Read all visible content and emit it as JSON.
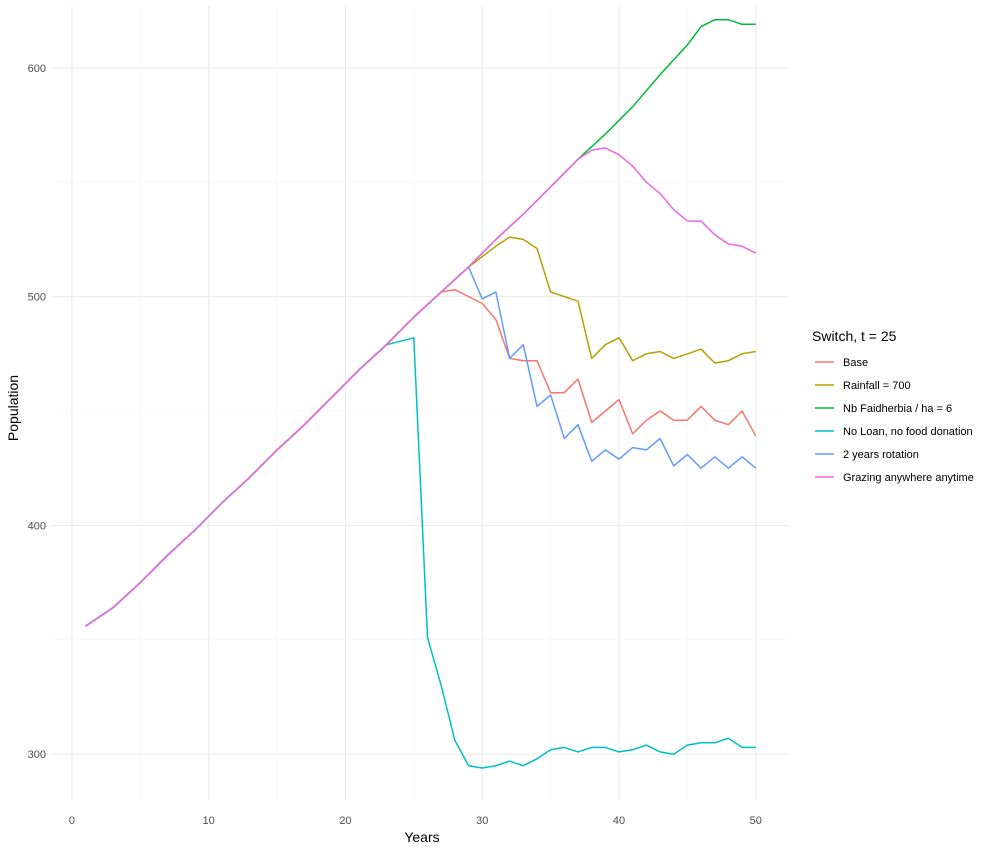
{
  "chart_data": {
    "type": "line",
    "xlabel": "Years",
    "ylabel": "Population",
    "xlim": [
      -1.6,
      52.5
    ],
    "ylim": [
      280,
      627
    ],
    "x_ticks": [
      0,
      10,
      20,
      30,
      40,
      50
    ],
    "y_ticks": [
      300,
      400,
      500,
      600
    ],
    "grid": true,
    "legend": {
      "title": "Switch, t = 25",
      "position": "right"
    },
    "series": [
      {
        "name": "Base",
        "color": "#F8766D",
        "points": [
          [
            1,
            356
          ],
          [
            3,
            364
          ],
          [
            5,
            375
          ],
          [
            7,
            387
          ],
          [
            9,
            398
          ],
          [
            11,
            410
          ],
          [
            13,
            421
          ],
          [
            15,
            433
          ],
          [
            17,
            444
          ],
          [
            19,
            456
          ],
          [
            21,
            468
          ],
          [
            23,
            479
          ],
          [
            25,
            491
          ],
          [
            27,
            502
          ],
          [
            28,
            503
          ],
          [
            30,
            497
          ],
          [
            31,
            490
          ],
          [
            32,
            473
          ],
          [
            33,
            472
          ],
          [
            34,
            472
          ],
          [
            35,
            458
          ],
          [
            36,
            458
          ],
          [
            37,
            464
          ],
          [
            38,
            445
          ],
          [
            39,
            450
          ],
          [
            40,
            455
          ],
          [
            41,
            440
          ],
          [
            42,
            446
          ],
          [
            43,
            450
          ],
          [
            44,
            446
          ],
          [
            45,
            446
          ],
          [
            46,
            452
          ],
          [
            47,
            446
          ],
          [
            48,
            444
          ],
          [
            49,
            450
          ],
          [
            50,
            439
          ]
        ]
      },
      {
        "name": "Rainfall = 700",
        "color": "#B79F00",
        "points": [
          [
            1,
            356
          ],
          [
            3,
            364
          ],
          [
            5,
            375
          ],
          [
            7,
            387
          ],
          [
            9,
            398
          ],
          [
            11,
            410
          ],
          [
            13,
            421
          ],
          [
            15,
            433
          ],
          [
            17,
            444
          ],
          [
            19,
            456
          ],
          [
            21,
            468
          ],
          [
            23,
            479
          ],
          [
            25,
            491
          ],
          [
            27,
            502
          ],
          [
            29,
            513
          ],
          [
            31,
            522
          ],
          [
            32,
            526
          ],
          [
            33,
            525
          ],
          [
            34,
            521
          ],
          [
            35,
            502
          ],
          [
            36,
            500
          ],
          [
            37,
            498
          ],
          [
            38,
            473
          ],
          [
            39,
            479
          ],
          [
            40,
            482
          ],
          [
            41,
            472
          ],
          [
            42,
            475
          ],
          [
            43,
            476
          ],
          [
            44,
            473
          ],
          [
            45,
            475
          ],
          [
            46,
            477
          ],
          [
            47,
            471
          ],
          [
            48,
            472
          ],
          [
            49,
            475
          ],
          [
            50,
            476
          ]
        ]
      },
      {
        "name": "Nb Faidherbia / ha = 6",
        "color": "#00BA38",
        "points": [
          [
            1,
            356
          ],
          [
            3,
            364
          ],
          [
            5,
            375
          ],
          [
            7,
            387
          ],
          [
            9,
            398
          ],
          [
            11,
            410
          ],
          [
            13,
            421
          ],
          [
            15,
            433
          ],
          [
            17,
            444
          ],
          [
            19,
            456
          ],
          [
            21,
            468
          ],
          [
            23,
            479
          ],
          [
            25,
            491
          ],
          [
            27,
            502
          ],
          [
            29,
            513
          ],
          [
            31,
            525
          ],
          [
            33,
            536
          ],
          [
            35,
            548
          ],
          [
            37,
            560
          ],
          [
            39,
            571
          ],
          [
            41,
            583
          ],
          [
            43,
            597
          ],
          [
            45,
            610
          ],
          [
            46,
            618
          ],
          [
            47,
            621
          ],
          [
            48,
            621
          ],
          [
            49,
            619
          ],
          [
            50,
            619
          ]
        ]
      },
      {
        "name": "No Loan, no food donation",
        "color": "#00BFC4",
        "points": [
          [
            1,
            356
          ],
          [
            3,
            364
          ],
          [
            5,
            375
          ],
          [
            7,
            387
          ],
          [
            9,
            398
          ],
          [
            11,
            410
          ],
          [
            13,
            421
          ],
          [
            15,
            433
          ],
          [
            17,
            444
          ],
          [
            19,
            456
          ],
          [
            21,
            468
          ],
          [
            23,
            479
          ],
          [
            25,
            482
          ],
          [
            26,
            351
          ],
          [
            27,
            330
          ],
          [
            28,
            306
          ],
          [
            29,
            295
          ],
          [
            30,
            294
          ],
          [
            31,
            295
          ],
          [
            32,
            297
          ],
          [
            33,
            295
          ],
          [
            34,
            298
          ],
          [
            35,
            302
          ],
          [
            36,
            303
          ],
          [
            37,
            301
          ],
          [
            38,
            303
          ],
          [
            39,
            303
          ],
          [
            40,
            301
          ],
          [
            41,
            302
          ],
          [
            42,
            304
          ],
          [
            43,
            301
          ],
          [
            44,
            300
          ],
          [
            45,
            304
          ],
          [
            46,
            305
          ],
          [
            47,
            305
          ],
          [
            48,
            307
          ],
          [
            49,
            303
          ],
          [
            50,
            303
          ]
        ]
      },
      {
        "name": "2 years rotation",
        "color": "#619CFF",
        "points": [
          [
            1,
            356
          ],
          [
            3,
            364
          ],
          [
            5,
            375
          ],
          [
            7,
            387
          ],
          [
            9,
            398
          ],
          [
            11,
            410
          ],
          [
            13,
            421
          ],
          [
            15,
            433
          ],
          [
            17,
            444
          ],
          [
            19,
            456
          ],
          [
            21,
            468
          ],
          [
            23,
            479
          ],
          [
            25,
            491
          ],
          [
            27,
            502
          ],
          [
            29,
            513
          ],
          [
            30,
            499
          ],
          [
            31,
            502
          ],
          [
            32,
            473
          ],
          [
            33,
            479
          ],
          [
            34,
            452
          ],
          [
            35,
            457
          ],
          [
            36,
            438
          ],
          [
            37,
            444
          ],
          [
            38,
            428
          ],
          [
            39,
            433
          ],
          [
            40,
            429
          ],
          [
            41,
            434
          ],
          [
            42,
            433
          ],
          [
            43,
            438
          ],
          [
            44,
            426
          ],
          [
            45,
            431
          ],
          [
            46,
            425
          ],
          [
            47,
            430
          ],
          [
            48,
            425
          ],
          [
            49,
            430
          ],
          [
            50,
            425
          ]
        ]
      },
      {
        "name": "Grazing anywhere anytime",
        "color": "#F564E3",
        "points": [
          [
            1,
            356
          ],
          [
            3,
            364
          ],
          [
            5,
            375
          ],
          [
            7,
            387
          ],
          [
            9,
            398
          ],
          [
            11,
            410
          ],
          [
            13,
            421
          ],
          [
            15,
            433
          ],
          [
            17,
            444
          ],
          [
            19,
            456
          ],
          [
            21,
            468
          ],
          [
            23,
            479
          ],
          [
            25,
            491
          ],
          [
            27,
            502
          ],
          [
            29,
            513
          ],
          [
            31,
            525
          ],
          [
            33,
            536
          ],
          [
            35,
            548
          ],
          [
            37,
            560
          ],
          [
            38,
            564
          ],
          [
            39,
            565
          ],
          [
            40,
            562
          ],
          [
            41,
            557
          ],
          [
            42,
            550
          ],
          [
            43,
            545
          ],
          [
            44,
            538
          ],
          [
            45,
            533
          ],
          [
            46,
            533
          ],
          [
            47,
            527
          ],
          [
            48,
            523
          ],
          [
            49,
            522
          ],
          [
            50,
            519
          ]
        ]
      }
    ]
  }
}
